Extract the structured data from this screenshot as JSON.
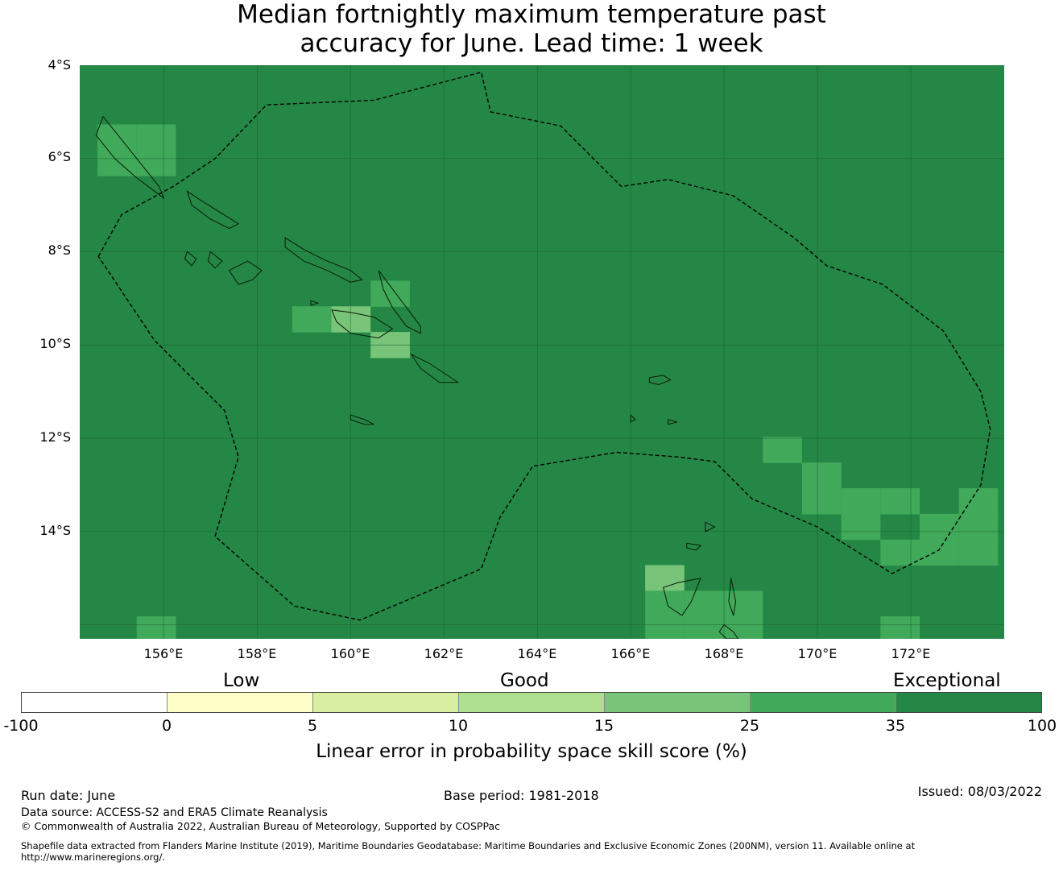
{
  "title": {
    "line1": "Median fortnightly maximum temperature past",
    "line2": "accuracy for June. Lead time: 1 week"
  },
  "map": {
    "lon_range": [
      154.2,
      174.0
    ],
    "lat_range": [
      -16.3,
      -4.0
    ],
    "lat_labels": [
      "4°S",
      "6°S",
      "8°S",
      "10°S",
      "12°S",
      "14°S"
    ],
    "lon_labels": [
      "156°E",
      "158°E",
      "160°E",
      "162°E",
      "164°E",
      "166°E",
      "168°E",
      "170°E",
      "172°E"
    ],
    "gridlines": true,
    "base_color": "#248745",
    "cell_size_deg": [
      0.84,
      0.56
    ],
    "cells": [
      {
        "lon": 155.0,
        "lat": -5.55,
        "category": "25-35"
      },
      {
        "lon": 155.0,
        "lat": -6.1,
        "category": "25-35"
      },
      {
        "lon": 155.84,
        "lat": -5.55,
        "category": "25-35"
      },
      {
        "lon": 155.84,
        "lat": -6.1,
        "category": "25-35"
      },
      {
        "lon": 160.85,
        "lat": -8.9,
        "category": "25-35"
      },
      {
        "lon": 159.17,
        "lat": -9.45,
        "category": "25-35"
      },
      {
        "lon": 160.01,
        "lat": -9.45,
        "category": "15-25"
      },
      {
        "lon": 160.85,
        "lat": -10.0,
        "category": "15-25"
      },
      {
        "lon": 169.25,
        "lat": -12.25,
        "category": "25-35"
      },
      {
        "lon": 170.09,
        "lat": -12.8,
        "category": "25-35"
      },
      {
        "lon": 170.09,
        "lat": -13.35,
        "category": "25-35"
      },
      {
        "lon": 170.93,
        "lat": -13.35,
        "category": "25-35"
      },
      {
        "lon": 170.93,
        "lat": -13.9,
        "category": "25-35"
      },
      {
        "lon": 171.77,
        "lat": -13.35,
        "category": "25-35"
      },
      {
        "lon": 172.61,
        "lat": -13.9,
        "category": "25-35"
      },
      {
        "lon": 173.45,
        "lat": -13.35,
        "category": "25-35"
      },
      {
        "lon": 173.45,
        "lat": -13.9,
        "category": "25-35"
      },
      {
        "lon": 171.77,
        "lat": -14.45,
        "category": "25-35"
      },
      {
        "lon": 172.61,
        "lat": -14.45,
        "category": "25-35"
      },
      {
        "lon": 173.45,
        "lat": -14.45,
        "category": "25-35"
      },
      {
        "lon": 166.73,
        "lat": -15.0,
        "category": "15-25"
      },
      {
        "lon": 166.73,
        "lat": -15.55,
        "category": "25-35"
      },
      {
        "lon": 167.57,
        "lat": -15.55,
        "category": "25-35"
      },
      {
        "lon": 168.41,
        "lat": -15.55,
        "category": "25-35"
      },
      {
        "lon": 166.73,
        "lat": -16.1,
        "category": "25-35"
      },
      {
        "lon": 167.57,
        "lat": -16.1,
        "category": "25-35"
      },
      {
        "lon": 168.41,
        "lat": -16.1,
        "category": "25-35"
      },
      {
        "lon": 155.84,
        "lat": -16.1,
        "category": "25-35"
      },
      {
        "lon": 171.77,
        "lat": -16.1,
        "category": "25-35"
      }
    ],
    "eez_boundaries": [
      [
        [
          154.6,
          -8.1
        ],
        [
          155.1,
          -7.2
        ],
        [
          156.2,
          -6.6
        ],
        [
          157.1,
          -6.0
        ],
        [
          158.2,
          -4.85
        ],
        [
          160.5,
          -4.75
        ],
        [
          162.8,
          -4.15
        ],
        [
          163.0,
          -5.0
        ],
        [
          164.5,
          -5.3
        ],
        [
          165.8,
          -6.6
        ],
        [
          166.8,
          -6.45
        ],
        [
          168.2,
          -6.8
        ],
        [
          169.5,
          -7.7
        ],
        [
          170.2,
          -8.3
        ],
        [
          171.4,
          -8.7
        ],
        [
          172.7,
          -9.7
        ],
        [
          173.5,
          -11.0
        ],
        [
          173.7,
          -11.8
        ],
        [
          173.5,
          -13.0
        ],
        [
          172.6,
          -14.4
        ],
        [
          171.6,
          -14.9
        ],
        [
          170.0,
          -13.9
        ],
        [
          168.6,
          -13.3
        ],
        [
          167.8,
          -12.5
        ],
        [
          167.0,
          -12.4
        ],
        [
          165.7,
          -12.3
        ],
        [
          163.9,
          -12.6
        ],
        [
          163.2,
          -13.7
        ],
        [
          162.8,
          -14.8
        ],
        [
          160.2,
          -15.9
        ],
        [
          158.8,
          -15.6
        ],
        [
          157.1,
          -14.1
        ],
        [
          157.6,
          -12.4
        ],
        [
          157.3,
          -11.4
        ],
        [
          155.8,
          -9.9
        ],
        [
          154.6,
          -8.1
        ]
      ]
    ],
    "coastlines": [
      [
        [
          154.55,
          -5.5
        ],
        [
          154.95,
          -6.0
        ],
        [
          155.4,
          -6.4
        ],
        [
          155.8,
          -6.7
        ],
        [
          156.0,
          -6.85
        ],
        [
          155.9,
          -6.6
        ],
        [
          155.5,
          -6.1
        ],
        [
          155.1,
          -5.6
        ],
        [
          154.7,
          -5.1
        ],
        [
          154.55,
          -5.5
        ]
      ],
      [
        [
          156.5,
          -6.7
        ],
        [
          156.8,
          -6.9
        ],
        [
          157.2,
          -7.15
        ],
        [
          157.6,
          -7.4
        ],
        [
          157.4,
          -7.5
        ],
        [
          157.0,
          -7.3
        ],
        [
          156.6,
          -7.0
        ],
        [
          156.5,
          -6.7
        ]
      ],
      [
        [
          158.6,
          -7.7
        ],
        [
          159.0,
          -7.95
        ],
        [
          159.5,
          -8.2
        ],
        [
          160.0,
          -8.4
        ],
        [
          160.25,
          -8.6
        ],
        [
          160.0,
          -8.65
        ],
        [
          159.5,
          -8.4
        ],
        [
          159.0,
          -8.2
        ],
        [
          158.6,
          -7.9
        ],
        [
          158.6,
          -7.7
        ]
      ],
      [
        [
          157.4,
          -8.4
        ],
        [
          157.8,
          -8.2
        ],
        [
          158.1,
          -8.4
        ],
        [
          157.9,
          -8.6
        ],
        [
          157.6,
          -8.7
        ],
        [
          157.4,
          -8.4
        ]
      ],
      [
        [
          156.5,
          -8.0
        ],
        [
          156.7,
          -8.15
        ],
        [
          156.6,
          -8.3
        ],
        [
          156.45,
          -8.15
        ],
        [
          156.5,
          -8.0
        ]
      ],
      [
        [
          157.0,
          -8.0
        ],
        [
          157.25,
          -8.2
        ],
        [
          157.1,
          -8.35
        ],
        [
          156.95,
          -8.2
        ],
        [
          157.0,
          -8.0
        ]
      ],
      [
        [
          159.6,
          -9.25
        ],
        [
          160.0,
          -9.3
        ],
        [
          160.5,
          -9.4
        ],
        [
          160.9,
          -9.65
        ],
        [
          160.6,
          -9.85
        ],
        [
          160.0,
          -9.75
        ],
        [
          159.7,
          -9.5
        ],
        [
          159.6,
          -9.25
        ]
      ],
      [
        [
          160.6,
          -8.4
        ],
        [
          160.9,
          -8.8
        ],
        [
          161.2,
          -9.2
        ],
        [
          161.5,
          -9.6
        ],
        [
          161.5,
          -9.75
        ],
        [
          161.2,
          -9.6
        ],
        [
          160.9,
          -9.2
        ],
        [
          160.7,
          -8.8
        ],
        [
          160.6,
          -8.4
        ]
      ],
      [
        [
          161.3,
          -10.2
        ],
        [
          161.7,
          -10.4
        ],
        [
          162.0,
          -10.6
        ],
        [
          162.3,
          -10.8
        ],
        [
          161.9,
          -10.8
        ],
        [
          161.5,
          -10.5
        ],
        [
          161.3,
          -10.2
        ]
      ],
      [
        [
          159.15,
          -9.05
        ],
        [
          159.3,
          -9.1
        ],
        [
          159.15,
          -9.15
        ],
        [
          159.15,
          -9.05
        ]
      ],
      [
        [
          160.0,
          -11.5
        ],
        [
          160.3,
          -11.6
        ],
        [
          160.5,
          -11.7
        ],
        [
          160.3,
          -11.7
        ],
        [
          160.0,
          -11.6
        ],
        [
          160.0,
          -11.5
        ]
      ],
      [
        [
          166.4,
          -10.7
        ],
        [
          166.7,
          -10.65
        ],
        [
          166.85,
          -10.75
        ],
        [
          166.6,
          -10.85
        ],
        [
          166.4,
          -10.8
        ],
        [
          166.4,
          -10.7
        ]
      ],
      [
        [
          167.5,
          -15.0
        ],
        [
          167.0,
          -15.1
        ],
        [
          166.7,
          -15.2
        ],
        [
          166.8,
          -15.6
        ],
        [
          167.1,
          -15.8
        ],
        [
          167.3,
          -15.5
        ],
        [
          167.5,
          -15.0
        ]
      ],
      [
        [
          168.0,
          -16.0
        ],
        [
          168.2,
          -16.15
        ],
        [
          168.3,
          -16.3
        ],
        [
          168.05,
          -16.3
        ],
        [
          167.9,
          -16.15
        ],
        [
          168.0,
          -16.0
        ]
      ],
      [
        [
          168.15,
          -15.0
        ],
        [
          168.25,
          -15.5
        ],
        [
          168.2,
          -15.8
        ],
        [
          168.1,
          -15.5
        ],
        [
          168.15,
          -15.0
        ]
      ],
      [
        [
          167.2,
          -14.25
        ],
        [
          167.5,
          -14.3
        ],
        [
          167.4,
          -14.4
        ],
        [
          167.2,
          -14.35
        ],
        [
          167.2,
          -14.25
        ]
      ],
      [
        [
          167.6,
          -13.8
        ],
        [
          167.8,
          -13.9
        ],
        [
          167.6,
          -14.0
        ],
        [
          167.6,
          -13.8
        ]
      ],
      [
        [
          166.0,
          -11.5
        ],
        [
          166.1,
          -11.6
        ],
        [
          166.0,
          -11.65
        ],
        [
          166.0,
          -11.5
        ]
      ],
      [
        [
          166.8,
          -11.6
        ],
        [
          167.0,
          -11.65
        ],
        [
          166.8,
          -11.7
        ],
        [
          166.8,
          -11.6
        ]
      ]
    ]
  },
  "legend": {
    "category_labels": {
      "low": "Low",
      "good": "Good",
      "exceptional": "Exceptional"
    },
    "ticks": [
      "-100",
      "0",
      "5",
      "10",
      "15",
      "25",
      "35",
      "100"
    ],
    "colors": [
      "#ffffff",
      "#feffc8",
      "#d8eea0",
      "#addf8e",
      "#78c479",
      "#40a95a",
      "#248745"
    ],
    "cell_category_colors": {
      "15-25": "#78c479",
      "25-35": "#40a95a"
    },
    "title": "Linear error in probability space skill score (%)"
  },
  "footer": {
    "run_date": "Run date: June",
    "base_period": "Base period: 1981-2018",
    "issued": "Issued: 08/03/2022",
    "data_source": "Data source: ACCESS-S2 and ERA5 Climate Reanalysis",
    "copyright": "© Commonwealth of Australia 2022, Australian Bureau of Meteorology, Supported by COSPPac",
    "shapefile_line1": "Shapefile data extracted from Flanders Marine Institute (2019), Maritime Boundaries Geodatabase: Maritime Boundaries and Exclusive Economic Zones (200NM), version 11. Available online at",
    "shapefile_line2": "http://www.marineregions.org/."
  }
}
